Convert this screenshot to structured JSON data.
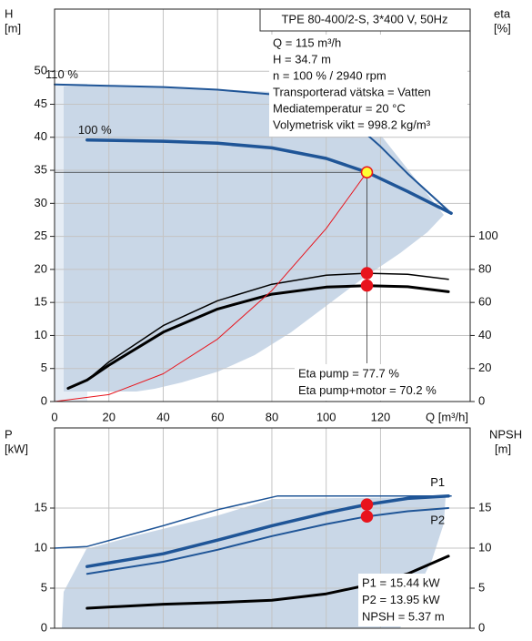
{
  "chart_data": [
    {
      "type": "line",
      "title": "TPE 80-400/2-S, 3*400 V, 50Hz",
      "ylabel": "H",
      "yunit": "[m]",
      "y2label": "eta",
      "y2unit": "[%]",
      "xlabel": "Q [m³/h]",
      "xlim": [
        0,
        153
      ],
      "xticks": [
        0,
        20,
        40,
        60,
        80,
        100,
        120
      ],
      "ylim": [
        0,
        59.4
      ],
      "yticks": [
        0,
        5,
        10,
        15,
        20,
        25,
        30,
        35,
        40,
        45,
        50
      ],
      "y2lim": [
        0,
        237.6
      ],
      "y2ticks": [
        0,
        20,
        40,
        60,
        80,
        100
      ],
      "grid": true,
      "show_xtick_labels": true,
      "series_label": "start",
      "series": [
        {
          "name": "110 %",
          "color": "#1f5597",
          "width": 2,
          "x": [
            0,
            20,
            40,
            60,
            80,
            100,
            110,
            120,
            130,
            146
          ],
          "values": [
            48,
            47.8,
            47.6,
            47.2,
            46.5,
            44.6,
            42.2,
            38.6,
            34.5,
            28.5
          ]
        },
        {
          "name": "100 %",
          "color": "#1f5597",
          "width": 3.5,
          "x": [
            12,
            40,
            60,
            80,
            100,
            115,
            130,
            146
          ],
          "values": [
            39.6,
            39.4,
            39.1,
            38.4,
            36.8,
            34.7,
            31.8,
            28.5
          ]
        },
        {
          "color": "#000000",
          "width": 1.5,
          "axis": "y2",
          "x": [
            12,
            20,
            40,
            60,
            80,
            100,
            115,
            130,
            145
          ],
          "values": [
            13,
            24,
            46,
            61,
            71,
            76.5,
            77.7,
            77,
            74
          ]
        },
        {
          "color": "#000000",
          "width": 3,
          "axis": "y2",
          "x": [
            5,
            12,
            20,
            40,
            60,
            80,
            100,
            115,
            130,
            145
          ],
          "values": [
            8,
            13,
            22,
            42,
            56,
            65,
            69.3,
            70.2,
            69.5,
            66.5
          ]
        },
        {
          "color": "#e8141c",
          "width": 1,
          "x": [
            0,
            20,
            40,
            60,
            80,
            100,
            115
          ],
          "values": [
            0,
            1.05,
            4.2,
            9.45,
            16.8,
            26.2,
            34.7
          ]
        }
      ],
      "markers": [
        {
          "x": 115,
          "y": 34.7,
          "color": "#ffff33"
        },
        {
          "x": 115,
          "y": 77.7,
          "axis": "y2",
          "color": "#e8141c"
        },
        {
          "x": 115,
          "y": 70.2,
          "axis": "y2",
          "color": "#e8141c"
        }
      ],
      "info": [
        "Q = 115 m³/h",
        "H = 34.7 m",
        "n = 100 % / 2940 rpm",
        "Transporterad vätska = Vatten",
        "Mediatemperatur = 20 °C",
        "Volymetrisk vikt = 998.2 kg/m³"
      ],
      "results": [
        "Eta pump = 77.7 %",
        "Eta pump+motor = 70.2 %"
      ]
    },
    {
      "type": "line",
      "ylabel": "P",
      "yunit": "[kW]",
      "y2label": "NPSH",
      "y2unit": "[m]",
      "xlim": [
        0,
        153
      ],
      "xticks": [
        0,
        20,
        40,
        60,
        80,
        100,
        120
      ],
      "ylim": [
        0,
        25
      ],
      "yticks": [
        0,
        5,
        10,
        15
      ],
      "y2lim": [
        0,
        25
      ],
      "y2ticks": [
        0,
        5,
        10,
        15
      ],
      "grid": true,
      "show_xtick_labels": false,
      "series_label": "end",
      "series": [
        {
          "color": "#1f5597",
          "width": 1.5,
          "x": [
            0,
            12,
            40,
            60,
            82,
            146
          ],
          "values": [
            10,
            10.2,
            12.8,
            14.8,
            16.5,
            16.5
          ]
        },
        {
          "name": "P1",
          "color": "#1f5597",
          "width": 3.5,
          "x": [
            12,
            40,
            60,
            80,
            100,
            115,
            130,
            145
          ],
          "values": [
            7.7,
            9.3,
            11,
            12.8,
            14.4,
            15.44,
            16.2,
            16.5
          ]
        },
        {
          "name": "P2",
          "color": "#1f5597",
          "width": 2,
          "x": [
            12,
            40,
            60,
            80,
            100,
            115,
            130,
            145
          ],
          "values": [
            6.8,
            8.3,
            9.8,
            11.5,
            13,
            13.95,
            14.6,
            15
          ]
        },
        {
          "color": "#000000",
          "width": 3,
          "axis": "y2",
          "x": [
            12,
            40,
            60,
            80,
            100,
            115,
            130,
            145
          ],
          "values": [
            2.5,
            3,
            3.2,
            3.5,
            4.3,
            5.37,
            6.8,
            9
          ]
        }
      ],
      "markers": [
        {
          "x": 115,
          "y": 15.44,
          "color": "#e8141c"
        },
        {
          "x": 115,
          "y": 13.95,
          "color": "#e8141c"
        }
      ],
      "results": [
        "P1 = 15.44 kW",
        "P2 = 13.95 kW",
        "NPSH = 5.37 m"
      ]
    }
  ]
}
